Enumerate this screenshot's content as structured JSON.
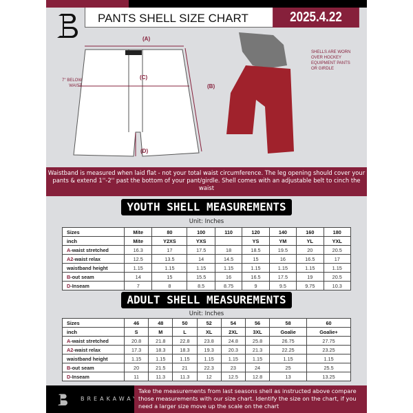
{
  "header": {
    "title": "PANTS SHELL SIZE CHART",
    "date": "2025.4.22"
  },
  "diagram": {
    "label_a": "(A)",
    "label_b": "(B)",
    "label_c": "(C)",
    "label_d": "(D)",
    "below_waist": "7'' BELOW WAIST",
    "note": "SHELLS ARE WORN OVER HOCKEY EQUIPMENT PANTS OR GIRDLE"
  },
  "instructions": "Waistband is measured when laid flat - not your total waist circumference. The leg opening should cover your pants & extend 1''-2'' past the bottom of your pant/girdle. Shell comes with an adjustable belt to cinch the waist",
  "youth": {
    "title": "YOUTH SHELL MEASUREMENTS",
    "unit": "Unit: Inches",
    "rows": [
      {
        "prefix": "",
        "label": "Sizes",
        "values": [
          "Mite",
          "80",
          "100",
          "110",
          "120",
          "140",
          "160",
          "180"
        ]
      },
      {
        "prefix": "",
        "label": "inch",
        "values": [
          "Mite",
          "Y2XS",
          "YXS",
          "",
          "YS",
          "YM",
          "YL",
          "YXL"
        ]
      },
      {
        "prefix": "A",
        "label": "-waist stretched",
        "values": [
          "16.3",
          "17",
          "17.5",
          "18",
          "18.5",
          "19.5",
          "20",
          "20.5"
        ]
      },
      {
        "prefix": "A2",
        "label": "-waist relax",
        "values": [
          "12.5",
          "13.5",
          "14",
          "14.5",
          "15",
          "16",
          "16.5",
          "17"
        ]
      },
      {
        "prefix": "",
        "label": "waistband height",
        "values": [
          "1.15",
          "1.15",
          "1.15",
          "1.15",
          "1.15",
          "1.15",
          "1.15",
          "1.15"
        ]
      },
      {
        "prefix": "B",
        "label": "-out seam",
        "values": [
          "14",
          "15",
          "15.5",
          "16",
          "16.5",
          "17.5",
          "19",
          "20.5"
        ]
      },
      {
        "prefix": "D",
        "label": "-Inseam",
        "values": [
          "7",
          "8",
          "8.5",
          "8.75",
          "9",
          "9.5",
          "9.75",
          "10.3"
        ]
      }
    ]
  },
  "adult": {
    "title": "ADULT SHELL MEASUREMENTS",
    "unit": "Unit: Inches",
    "rows": [
      {
        "prefix": "",
        "label": "Sizes",
        "values": [
          "46",
          "48",
          "50",
          "52",
          "54",
          "56",
          "58",
          "60"
        ]
      },
      {
        "prefix": "",
        "label": "inch",
        "values": [
          "S",
          "M",
          "L",
          "XL",
          "2XL",
          "3XL",
          "Goalie",
          "Goalie+"
        ]
      },
      {
        "prefix": "A",
        "label": "-waist stretched",
        "values": [
          "20.8",
          "21.8",
          "22.8",
          "23.8",
          "24.8",
          "25.8",
          "26.75",
          "27.75"
        ]
      },
      {
        "prefix": "A2",
        "label": "-waist relax",
        "values": [
          "17.3",
          "18.3",
          "18.3",
          "19.3",
          "20.3",
          "21.3",
          "22.25",
          "23.25"
        ]
      },
      {
        "prefix": "",
        "label": "waistband height",
        "values": [
          "1.15",
          "1.15",
          "1.15",
          "1.15",
          "1.15",
          "1.15",
          "1.15",
          "1.15"
        ]
      },
      {
        "prefix": "B",
        "label": "-out seam",
        "values": [
          "20",
          "21.5",
          "21",
          "22.3",
          "23",
          "24",
          "25",
          "25.5"
        ]
      },
      {
        "prefix": "D",
        "label": "-Inseam",
        "values": [
          "11",
          "11.3",
          "11.3",
          "12",
          "12.5",
          "12.8",
          "13",
          "13.25"
        ]
      }
    ]
  },
  "footer": {
    "brand": "BREAKAWAY",
    "text": "Take the measurements from last seasons shell as instructed above compare those measurements  with our size chart. Identify the size on the chart, if you need a larger size move up the scale on the chart"
  },
  "colors": {
    "accent": "#86203b",
    "background": "#dcdde0",
    "pants": "#a0222c"
  }
}
